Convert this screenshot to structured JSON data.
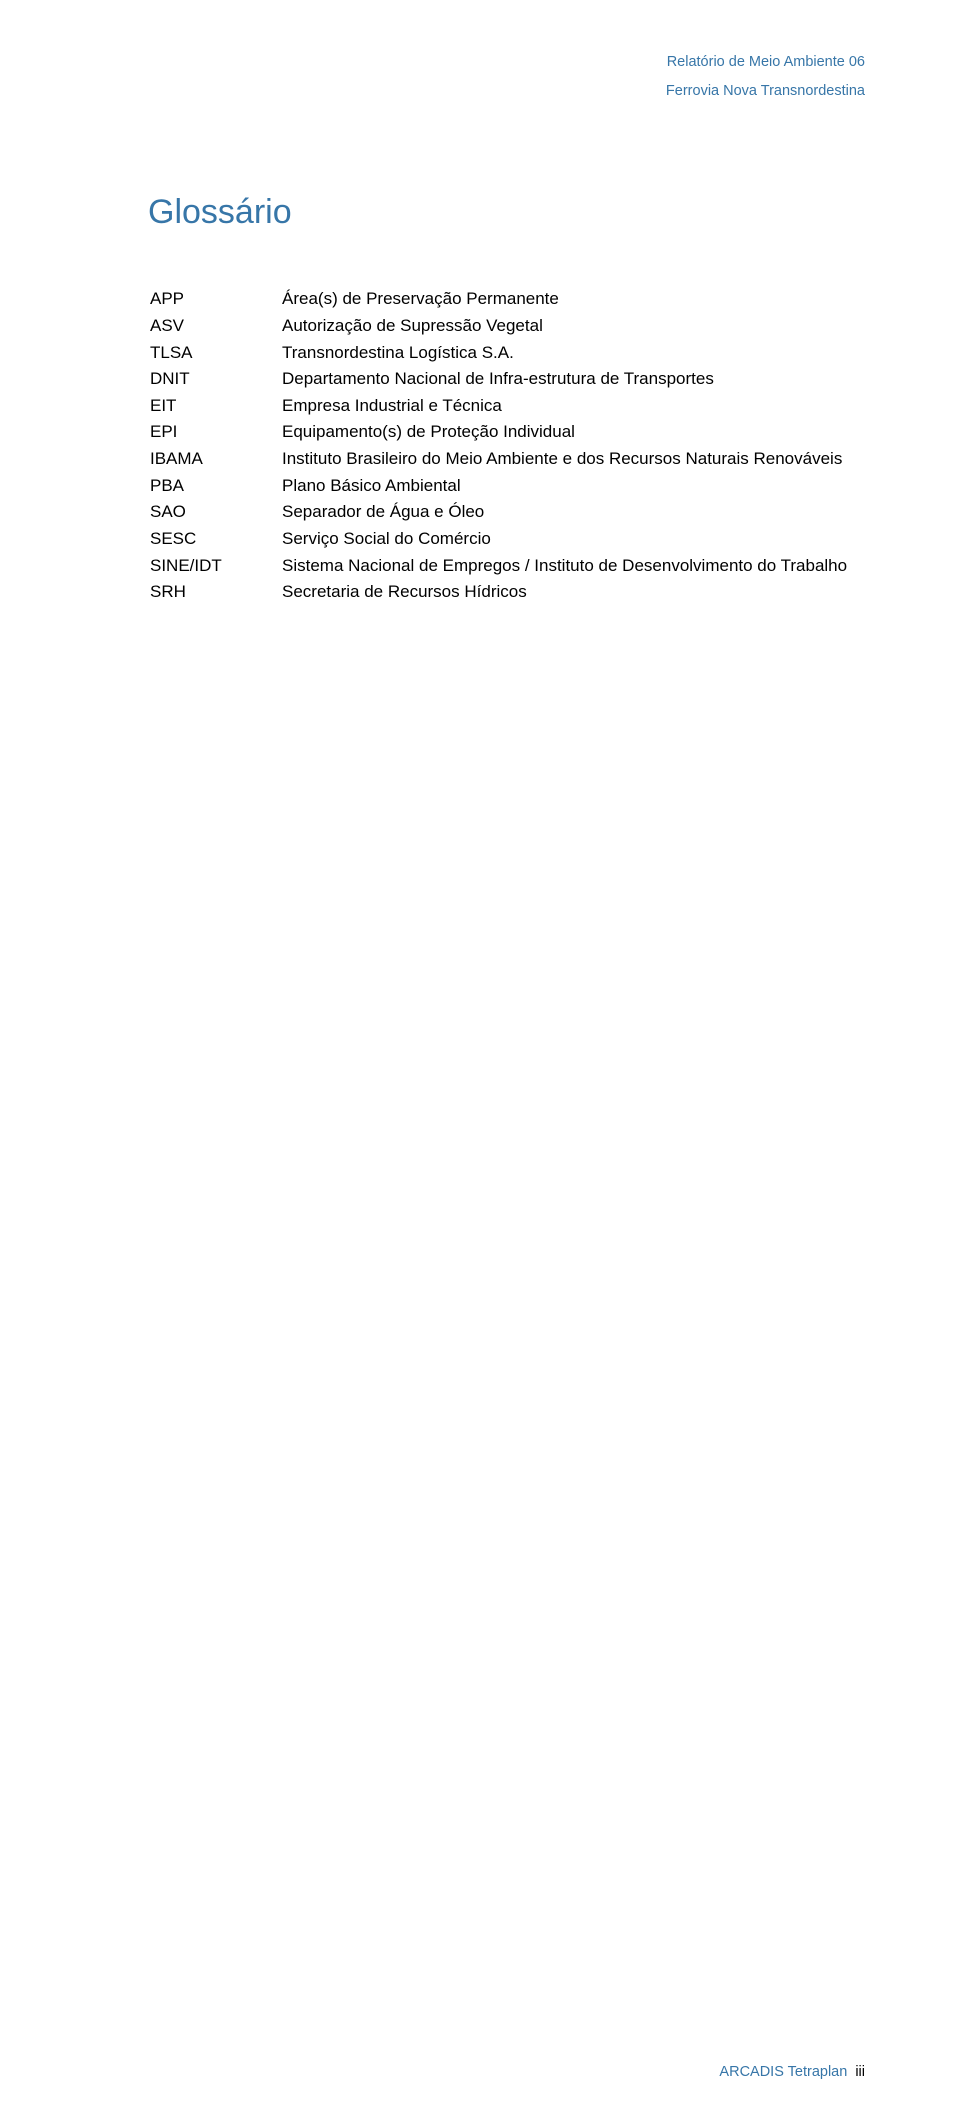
{
  "header": {
    "line1": "Relatório de Meio Ambiente 06",
    "line2": "Ferrovia Nova Transnordestina"
  },
  "title": "Glossário",
  "glossary": [
    {
      "abbr": "APP",
      "def": "Área(s) de Preservação Permanente"
    },
    {
      "abbr": "ASV",
      "def": "Autorização de Supressão Vegetal"
    },
    {
      "abbr": "TLSA",
      "def": "Transnordestina Logística S.A."
    },
    {
      "abbr": "DNIT",
      "def": "Departamento Nacional de Infra-estrutura de Transportes"
    },
    {
      "abbr": "EIT",
      "def": "Empresa Industrial e Técnica"
    },
    {
      "abbr": "EPI",
      "def": "Equipamento(s) de Proteção Individual"
    },
    {
      "abbr": "IBAMA",
      "def": "Instituto Brasileiro do Meio Ambiente e dos Recursos Naturais Renováveis"
    },
    {
      "abbr": "PBA",
      "def": "Plano Básico Ambiental"
    },
    {
      "abbr": "SAO",
      "def": "Separador de Água e Óleo"
    },
    {
      "abbr": "SESC",
      "def": "Serviço Social do Comércio"
    },
    {
      "abbr": "SINE/IDT",
      "def": "Sistema Nacional de Empregos / Instituto de Desenvolvimento do Trabalho"
    },
    {
      "abbr": "SRH",
      "def": "Secretaria de Recursos Hídricos"
    }
  ],
  "footer": {
    "brand": "ARCADIS Tetraplan",
    "page": "iii"
  },
  "colors": {
    "accent": "#3776a8",
    "text": "#000000",
    "background": "#ffffff"
  }
}
